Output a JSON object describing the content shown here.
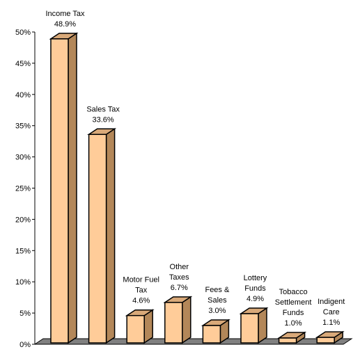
{
  "chart_data": {
    "type": "bar",
    "title": "",
    "xlabel": "",
    "ylabel": "",
    "ylim": [
      0,
      50
    ],
    "yticks": [
      0,
      5,
      10,
      15,
      20,
      25,
      30,
      35,
      40,
      45,
      50
    ],
    "ytick_labels": [
      "0%",
      "5%",
      "10%",
      "15%",
      "20%",
      "25%",
      "30%",
      "35%",
      "40%",
      "45%",
      "50%"
    ],
    "bar_style": "3d",
    "grid": false,
    "legend": "none",
    "colors": {
      "bar_front": "#FFCC99",
      "bar_top": "#D9A979",
      "bar_side": "#B38759",
      "floor": "#808080",
      "outline": "#000000"
    },
    "categories": [
      [
        "Income Tax"
      ],
      [
        "Sales Tax"
      ],
      [
        "Motor Fuel",
        "Tax"
      ],
      [
        "Other",
        "Taxes"
      ],
      [
        "Fees &",
        "Sales"
      ],
      [
        "Lottery",
        "Funds"
      ],
      [
        "Tobacco",
        "Settlement",
        "Funds"
      ],
      [
        "Indigent",
        "Care"
      ]
    ],
    "value_labels": [
      "48.9%",
      "33.6%",
      "4.6%",
      "6.7%",
      "3.0%",
      "4.9%",
      "1.0%",
      "1.1%"
    ],
    "values": [
      48.9,
      33.6,
      4.6,
      6.7,
      3.0,
      4.9,
      1.0,
      1.1
    ]
  }
}
